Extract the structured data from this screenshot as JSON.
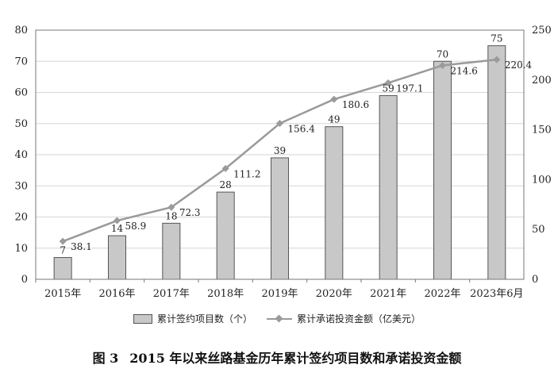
{
  "caption": {
    "figure_no": "图 3",
    "title": "2015 年以来丝路基金历年累计签约项目数和承诺投资金额"
  },
  "colors": {
    "bar_fill": "#c8c8c8",
    "bar_stroke": "#555555",
    "line": "#9a9a9a",
    "grid": "#d6d6d6"
  },
  "chart_data": {
    "type": "bar+line",
    "categories": [
      "2015年",
      "2016年",
      "2017年",
      "2018年",
      "2019年",
      "2020年",
      "2021年",
      "2022年",
      "2023年6月"
    ],
    "series": [
      {
        "name": "累计签约项目数（个）",
        "type": "bar",
        "axis": "left",
        "values": [
          7,
          14,
          18,
          28,
          39,
          49,
          59,
          70,
          75
        ],
        "labels": [
          "7",
          "14",
          "18",
          "28",
          "39",
          "49",
          "59",
          "70",
          "75"
        ]
      },
      {
        "name": "累计承诺投资金额（亿美元）",
        "type": "line",
        "axis": "right",
        "values": [
          38.1,
          58.9,
          72.3,
          111.2,
          156.4,
          180.6,
          197.1,
          214.6,
          220.4
        ],
        "labels": [
          "38.1",
          "58.9",
          "72.3",
          "111.2",
          "156.4",
          "180.6",
          "197.1",
          "214.6",
          "220.4"
        ]
      }
    ],
    "y_left": {
      "min": 0,
      "max": 80,
      "ticks": [
        "0",
        "10",
        "20",
        "30",
        "40",
        "50",
        "60",
        "70",
        "80"
      ]
    },
    "y_right": {
      "min": 0,
      "max": 250,
      "ticks": [
        "0",
        "50",
        "100",
        "150",
        "200",
        "250"
      ]
    },
    "grid": "horizontal",
    "legend": "bottom"
  }
}
